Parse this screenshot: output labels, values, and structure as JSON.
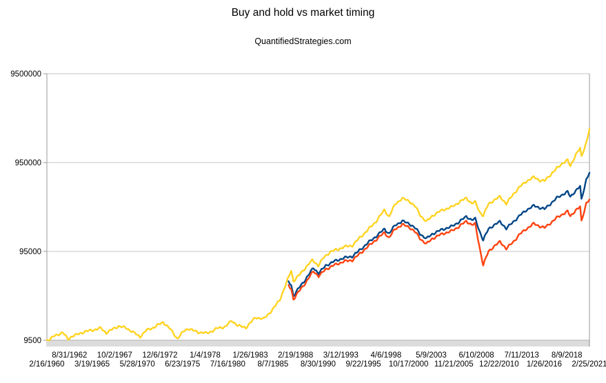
{
  "header": {
    "title": "Buy and hold vs market timing",
    "subtitle": "QuantifiedStrategies.com"
  },
  "chart_data": {
    "type": "line",
    "title": "Buy and hold vs market timing",
    "subtitle": "QuantifiedStrategies.com",
    "legend": "none",
    "grid": "horizontal",
    "colors": {
      "yellow": "#FFD320",
      "blue": "#004586",
      "red": "#FF420E",
      "gridline": "#c6c6c6",
      "axis": "#9a9a9a"
    },
    "y_axis": {
      "scale": "log",
      "tick_labels": [
        "9500000",
        "950000",
        "95000",
        "9500"
      ],
      "tick_values": [
        9500000,
        950000,
        95000,
        9500
      ],
      "ylim": [
        9500,
        9500000
      ]
    },
    "x_axis": {
      "start_year": 1960.12,
      "end_year": 2021.15,
      "tick_labels": [
        "2/16/1960",
        "8/31/1962",
        "3/19/1965",
        "10/2/1967",
        "5/28/1970",
        "12/6/1972",
        "6/23/1975",
        "1/4/1978",
        "7/16/1980",
        "1/26/1983",
        "8/7/1985",
        "2/19/1988",
        "8/30/1990",
        "3/12/1993",
        "9/22/1995",
        "4/6/1998",
        "10/17/2000",
        "5/9/2003",
        "11/21/2005",
        "6/10/2008",
        "12/22/2010",
        "7/11/2013",
        "1/26/2016",
        "8/9/2018",
        "2/25/2021"
      ],
      "label_layout": "alternating two rows, first label on lower row"
    },
    "series": [
      {
        "name": "yellow",
        "description": "full-period line starting 1960 (buy and hold)",
        "color": "#FFD320",
        "points": [
          [
            1960.12,
            9500
          ],
          [
            1960.5,
            9800
          ],
          [
            1961.0,
            10700
          ],
          [
            1961.9,
            11600
          ],
          [
            1962.5,
            9800
          ],
          [
            1963.0,
            10600
          ],
          [
            1963.5,
            11000
          ],
          [
            1964.4,
            11900
          ],
          [
            1965.3,
            12400
          ],
          [
            1966.2,
            13000
          ],
          [
            1966.8,
            11500
          ],
          [
            1967.6,
            12800
          ],
          [
            1968.2,
            13700
          ],
          [
            1969.0,
            13100
          ],
          [
            1969.5,
            12300
          ],
          [
            1970.6,
            10400
          ],
          [
            1971.3,
            12300
          ],
          [
            1972.1,
            13200
          ],
          [
            1973.2,
            15200
          ],
          [
            1974.0,
            12700
          ],
          [
            1974.8,
            9900
          ],
          [
            1975.5,
            12000
          ],
          [
            1976.0,
            12900
          ],
          [
            1977.0,
            11800
          ],
          [
            1978.1,
            11400
          ],
          [
            1978.8,
            12200
          ],
          [
            1979.3,
            13000
          ],
          [
            1980.2,
            13500
          ],
          [
            1980.9,
            15800
          ],
          [
            1981.6,
            13900
          ],
          [
            1982.5,
            13200
          ],
          [
            1983.6,
            17200
          ],
          [
            1984.5,
            16500
          ],
          [
            1985.5,
            21000
          ],
          [
            1986.3,
            27000
          ],
          [
            1986.9,
            38000
          ],
          [
            1987.6,
            58000
          ],
          [
            1987.85,
            44000
          ],
          [
            1988.4,
            50000
          ],
          [
            1989.3,
            64000
          ],
          [
            1990.0,
            76000
          ],
          [
            1990.65,
            66000
          ],
          [
            1991.3,
            82000
          ],
          [
            1992.0,
            94000
          ],
          [
            1992.8,
            100000
          ],
          [
            1993.6,
            107000
          ],
          [
            1994.5,
            111000
          ],
          [
            1995.3,
            135000
          ],
          [
            1996.2,
            165000
          ],
          [
            1997.2,
            210000
          ],
          [
            1998.1,
            280000
          ],
          [
            1998.6,
            232000
          ],
          [
            1999.3,
            325000
          ],
          [
            2000.1,
            375000
          ],
          [
            2000.9,
            350000
          ],
          [
            2001.6,
            300000
          ],
          [
            2002.1,
            245000
          ],
          [
            2002.8,
            205000
          ],
          [
            2003.5,
            240000
          ],
          [
            2004.6,
            278000
          ],
          [
            2005.6,
            298000
          ],
          [
            2006.5,
            340000
          ],
          [
            2007.3,
            380000
          ],
          [
            2007.9,
            330000
          ],
          [
            2008.3,
            340000
          ],
          [
            2008.8,
            265000
          ],
          [
            2009.2,
            240000
          ],
          [
            2009.8,
            325000
          ],
          [
            2010.4,
            358000
          ],
          [
            2011.1,
            392000
          ],
          [
            2011.8,
            327000
          ],
          [
            2012.6,
            420000
          ],
          [
            2013.3,
            505000
          ],
          [
            2014.1,
            590000
          ],
          [
            2014.9,
            650000
          ],
          [
            2015.6,
            600000
          ],
          [
            2016.1,
            590000
          ],
          [
            2016.8,
            700000
          ],
          [
            2017.5,
            820000
          ],
          [
            2018.2,
            950000
          ],
          [
            2018.7,
            1010000
          ],
          [
            2019.0,
            860000
          ],
          [
            2019.6,
            1170000
          ],
          [
            2020.1,
            1370000
          ],
          [
            2020.25,
            1090000
          ],
          [
            2020.8,
            1620000
          ],
          [
            2021.15,
            2270000
          ]
        ]
      },
      {
        "name": "blue",
        "description": "market timing line starting 1987",
        "color": "#004586",
        "points": [
          [
            1987.3,
            43000
          ],
          [
            1987.6,
            40000
          ],
          [
            1987.85,
            30000
          ],
          [
            1988.4,
            36000
          ],
          [
            1989.2,
            46000
          ],
          [
            1990.1,
            62000
          ],
          [
            1990.7,
            54000
          ],
          [
            1991.5,
            66000
          ],
          [
            1992.5,
            74000
          ],
          [
            1993.5,
            80000
          ],
          [
            1994.5,
            84000
          ],
          [
            1995.3,
            98000
          ],
          [
            1996.2,
            118000
          ],
          [
            1997.2,
            142000
          ],
          [
            1998.1,
            170000
          ],
          [
            1998.6,
            150000
          ],
          [
            1999.3,
            188000
          ],
          [
            2000.1,
            208000
          ],
          [
            2000.9,
            195000
          ],
          [
            2001.6,
            172000
          ],
          [
            2002.1,
            150000
          ],
          [
            2002.8,
            132000
          ],
          [
            2003.5,
            150000
          ],
          [
            2004.6,
            168000
          ],
          [
            2005.6,
            180000
          ],
          [
            2006.5,
            205000
          ],
          [
            2007.3,
            235000
          ],
          [
            2007.9,
            215000
          ],
          [
            2008.3,
            220000
          ],
          [
            2008.8,
            160000
          ],
          [
            2009.2,
            128000
          ],
          [
            2009.8,
            170000
          ],
          [
            2010.4,
            188000
          ],
          [
            2011.1,
            205000
          ],
          [
            2011.8,
            172000
          ],
          [
            2012.6,
            205000
          ],
          [
            2013.3,
            240000
          ],
          [
            2014.1,
            280000
          ],
          [
            2014.9,
            310000
          ],
          [
            2015.6,
            295000
          ],
          [
            2016.1,
            285000
          ],
          [
            2016.8,
            330000
          ],
          [
            2017.5,
            380000
          ],
          [
            2018.2,
            420000
          ],
          [
            2018.7,
            445000
          ],
          [
            2019.0,
            390000
          ],
          [
            2019.6,
            460000
          ],
          [
            2020.1,
            510000
          ],
          [
            2020.25,
            360000
          ],
          [
            2020.8,
            620000
          ],
          [
            2021.15,
            730000
          ]
        ]
      },
      {
        "name": "red",
        "description": "market timing line starting 1987",
        "color": "#FF420E",
        "points": [
          [
            1987.3,
            39000
          ],
          [
            1987.6,
            36000
          ],
          [
            1987.85,
            27500
          ],
          [
            1988.4,
            33000
          ],
          [
            1989.2,
            42000
          ],
          [
            1990.1,
            57000
          ],
          [
            1990.7,
            50000
          ],
          [
            1991.5,
            60000
          ],
          [
            1992.5,
            67000
          ],
          [
            1993.5,
            73000
          ],
          [
            1994.5,
            76000
          ],
          [
            1995.3,
            89000
          ],
          [
            1996.2,
            107000
          ],
          [
            1997.2,
            130000
          ],
          [
            1998.1,
            155000
          ],
          [
            1998.6,
            135000
          ],
          [
            1999.3,
            170000
          ],
          [
            2000.1,
            190000
          ],
          [
            2000.9,
            178000
          ],
          [
            2001.6,
            155000
          ],
          [
            2002.1,
            133000
          ],
          [
            2002.8,
            115000
          ],
          [
            2003.5,
            133000
          ],
          [
            2004.6,
            150000
          ],
          [
            2005.6,
            160000
          ],
          [
            2006.5,
            182000
          ],
          [
            2007.3,
            208000
          ],
          [
            2007.9,
            190000
          ],
          [
            2008.3,
            192000
          ],
          [
            2008.8,
            105000
          ],
          [
            2009.2,
            67000
          ],
          [
            2009.8,
            95000
          ],
          [
            2010.4,
            108000
          ],
          [
            2011.1,
            122000
          ],
          [
            2011.8,
            102000
          ],
          [
            2012.6,
            122000
          ],
          [
            2013.3,
            148000
          ],
          [
            2014.1,
            172000
          ],
          [
            2014.9,
            195000
          ],
          [
            2015.6,
            182000
          ],
          [
            2016.1,
            175000
          ],
          [
            2016.8,
            200000
          ],
          [
            2017.5,
            228000
          ],
          [
            2018.2,
            252000
          ],
          [
            2018.7,
            268000
          ],
          [
            2019.0,
            235000
          ],
          [
            2019.6,
            278000
          ],
          [
            2020.1,
            300000
          ],
          [
            2020.25,
            205000
          ],
          [
            2020.8,
            335000
          ],
          [
            2021.15,
            365000
          ]
        ]
      }
    ]
  }
}
